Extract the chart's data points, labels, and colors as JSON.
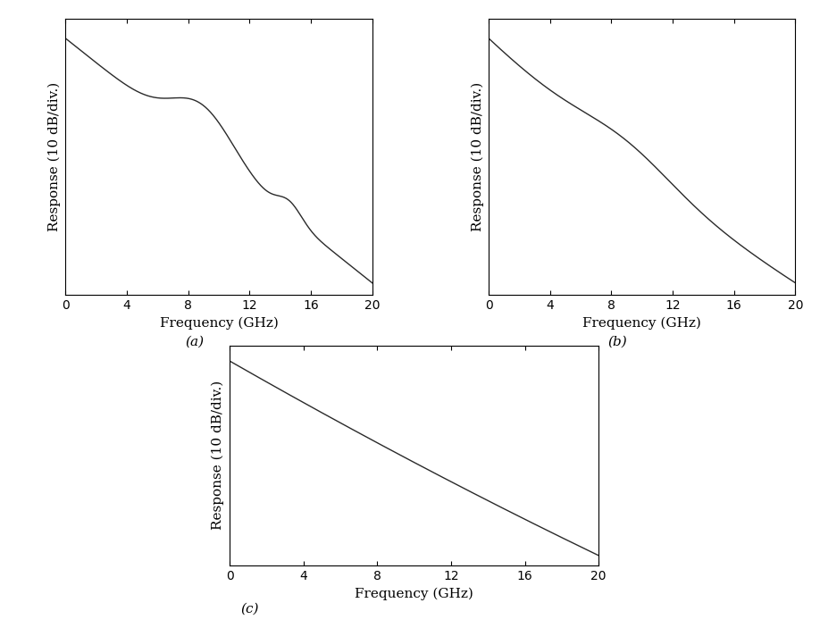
{
  "ylabel": "Response (10 dB/div.)",
  "xlabel": "Frequency (GHz)",
  "xlim": [
    0,
    20
  ],
  "xticks": [
    0,
    4,
    8,
    12,
    16,
    20
  ],
  "line_color": "#2a2a2a",
  "line_width": 1.0,
  "bg_color": "#ffffff",
  "subplot_labels": [
    "(a)",
    "(b)",
    "(c)"
  ],
  "n_taps": [
    20,
    39,
    80
  ],
  "figsize": [
    9.18,
    7.03
  ],
  "dpi": 100,
  "label_fontsize": 11,
  "tick_fontsize": 10
}
